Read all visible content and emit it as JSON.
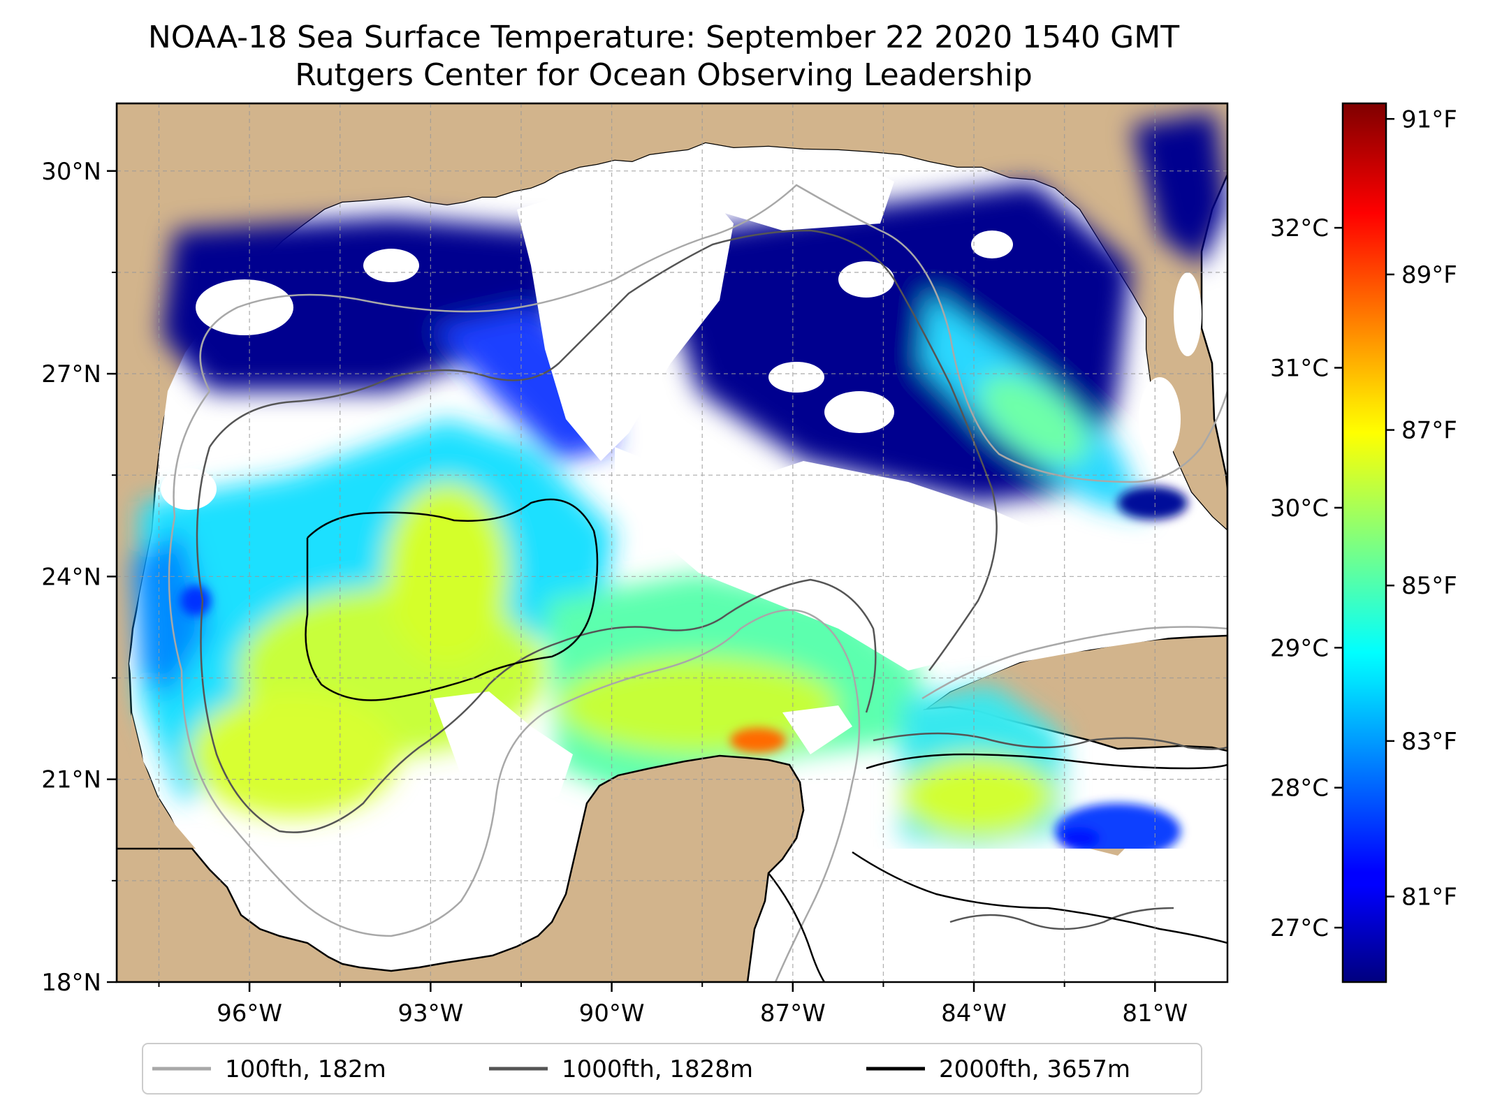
{
  "title": "NOAA-18 Sea Surface Temperature: September 22 2020 1540 GMT",
  "subtitle": "Rutgers Center for Ocean Observing Leadership",
  "map": {
    "lon_range": [
      -98.2,
      -79.8
    ],
    "lat_range": [
      18.0,
      31.0
    ],
    "lon_ticks": [
      -96,
      -93,
      -90,
      -87,
      -84,
      -81
    ],
    "lon_tick_labels": [
      "96°W",
      "93°W",
      "90°W",
      "87°W",
      "84°W",
      "81°W"
    ],
    "lat_ticks": [
      18,
      21,
      24,
      27,
      30
    ],
    "lat_tick_labels": [
      "18°N",
      "21°N",
      "24°N",
      "27°N",
      "30°N"
    ],
    "grid": true,
    "land_color": "#d2b48c",
    "no_data_color": "#ffffff"
  },
  "colorbar": {
    "colormap": "jet",
    "celsius_ticks": [
      27,
      28,
      29,
      30,
      31,
      32
    ],
    "celsius_labels": [
      "27°C",
      "28°C",
      "29°C",
      "30°C",
      "31°C",
      "32°C"
    ],
    "fahrenheit_ticks": [
      81,
      83,
      85,
      87,
      89,
      91
    ],
    "fahrenheit_labels": [
      "81°F",
      "83°F",
      "85°F",
      "87°F",
      "89°F",
      "91°F"
    ],
    "fahrenheit_range": [
      79.9,
      91.2
    ]
  },
  "legend": {
    "placement": "bottom-center",
    "items": [
      {
        "label": "100fth, 182m",
        "color": "#a8a8a8"
      },
      {
        "label": "1000fth, 1828m",
        "color": "#555555"
      },
      {
        "label": "2000fth, 3657m",
        "color": "#000000"
      }
    ]
  }
}
